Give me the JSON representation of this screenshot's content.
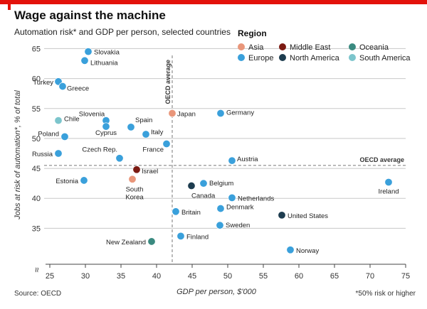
{
  "header": {
    "title": "Wage against the machine",
    "subtitle": "Automation risk* and GDP per person, selected countries"
  },
  "footer": {
    "source": "Source: OECD",
    "footnote": "*50% risk or higher"
  },
  "colors": {
    "brand_red": "#e3120b",
    "Asia": "#e9967a",
    "Middle East": "#7b1a12",
    "Oceania": "#3a8a80",
    "Europe": "#3aa0db",
    "North America": "#1d3c4f",
    "South America": "#7cc5cc"
  },
  "chart_data": {
    "type": "scatter",
    "xlabel": "GDP per person, $'000",
    "ylabel": "Jobs at risk of automation*, % of total",
    "xlim": [
      24,
      75
    ],
    "ylim": [
      29,
      66
    ],
    "xticks": [
      25,
      30,
      35,
      40,
      45,
      50,
      55,
      60,
      65,
      70,
      75
    ],
    "yticks": [
      35,
      40,
      45,
      50,
      55,
      60,
      65
    ],
    "grid": "horizontal",
    "axis_break_symbol": "≈",
    "legend": {
      "title": "Region",
      "placement": "top-right",
      "items": [
        "Asia",
        "Middle East",
        "Oceania",
        "Europe",
        "North America",
        "South America"
      ]
    },
    "reference_lines": [
      {
        "orientation": "vertical",
        "value": 42.2,
        "label": "OECD average"
      },
      {
        "orientation": "horizontal",
        "value": 45.5,
        "label": "OECD average"
      }
    ],
    "points": [
      {
        "country": "Slovakia",
        "region": "Europe",
        "x": 30.4,
        "y": 64.5
      },
      {
        "country": "Lithuania",
        "region": "Europe",
        "x": 29.9,
        "y": 63.0
      },
      {
        "country": "Turkey",
        "region": "Europe",
        "x": 25.7,
        "y": 59.5
      },
      {
        "country": "Greece",
        "region": "Europe",
        "x": 26.8,
        "y": 58.7
      },
      {
        "country": "Chile",
        "region": "South America",
        "x": 22.9,
        "y": 53.0
      },
      {
        "country": "Slovenia",
        "region": "Europe",
        "x": 32.9,
        "y": 53.0
      },
      {
        "country": "Cyprus",
        "region": "Europe",
        "x": 32.9,
        "y": 52.0
      },
      {
        "country": "Spain",
        "region": "Europe",
        "x": 36.4,
        "y": 51.9
      },
      {
        "country": "Japan",
        "region": "Asia",
        "x": 42.2,
        "y": 54.2
      },
      {
        "country": "Germany",
        "region": "Europe",
        "x": 49.0,
        "y": 54.2
      },
      {
        "country": "Poland",
        "region": "Europe",
        "x": 27.1,
        "y": 50.3
      },
      {
        "country": "Italy",
        "region": "Europe",
        "x": 38.5,
        "y": 50.7
      },
      {
        "country": "France",
        "region": "Europe",
        "x": 41.4,
        "y": 49.1
      },
      {
        "country": "Russia",
        "region": "Europe",
        "x": 24.9,
        "y": 47.5
      },
      {
        "country": "Czech Rep.",
        "region": "Europe",
        "x": 34.8,
        "y": 46.7
      },
      {
        "country": "Austria",
        "region": "Europe",
        "x": 50.6,
        "y": 46.3
      },
      {
        "country": "Israel",
        "region": "Middle East",
        "x": 37.2,
        "y": 44.8
      },
      {
        "country": "South Korea",
        "region": "Asia",
        "x": 36.6,
        "y": 43.2
      },
      {
        "country": "Estonia",
        "region": "Europe",
        "x": 29.8,
        "y": 43.0
      },
      {
        "country": "Canada",
        "region": "North America",
        "x": 44.9,
        "y": 42.1
      },
      {
        "country": "Belgium",
        "region": "Europe",
        "x": 46.6,
        "y": 42.5
      },
      {
        "country": "Ireland",
        "region": "Europe",
        "x": 72.6,
        "y": 42.7
      },
      {
        "country": "Netherlands",
        "region": "Europe",
        "x": 50.6,
        "y": 40.1
      },
      {
        "country": "Denmark",
        "region": "Europe",
        "x": 49.0,
        "y": 38.3
      },
      {
        "country": "Britain",
        "region": "Europe",
        "x": 42.7,
        "y": 37.8
      },
      {
        "country": "United States",
        "region": "North America",
        "x": 57.6,
        "y": 37.2
      },
      {
        "country": "Sweden",
        "region": "Europe",
        "x": 48.9,
        "y": 35.5
      },
      {
        "country": "Finland",
        "region": "Europe",
        "x": 43.4,
        "y": 33.7
      },
      {
        "country": "New Zealand",
        "region": "Oceania",
        "x": 39.3,
        "y": 32.8
      },
      {
        "country": "Norway",
        "region": "Europe",
        "x": 58.8,
        "y": 31.4
      }
    ]
  }
}
